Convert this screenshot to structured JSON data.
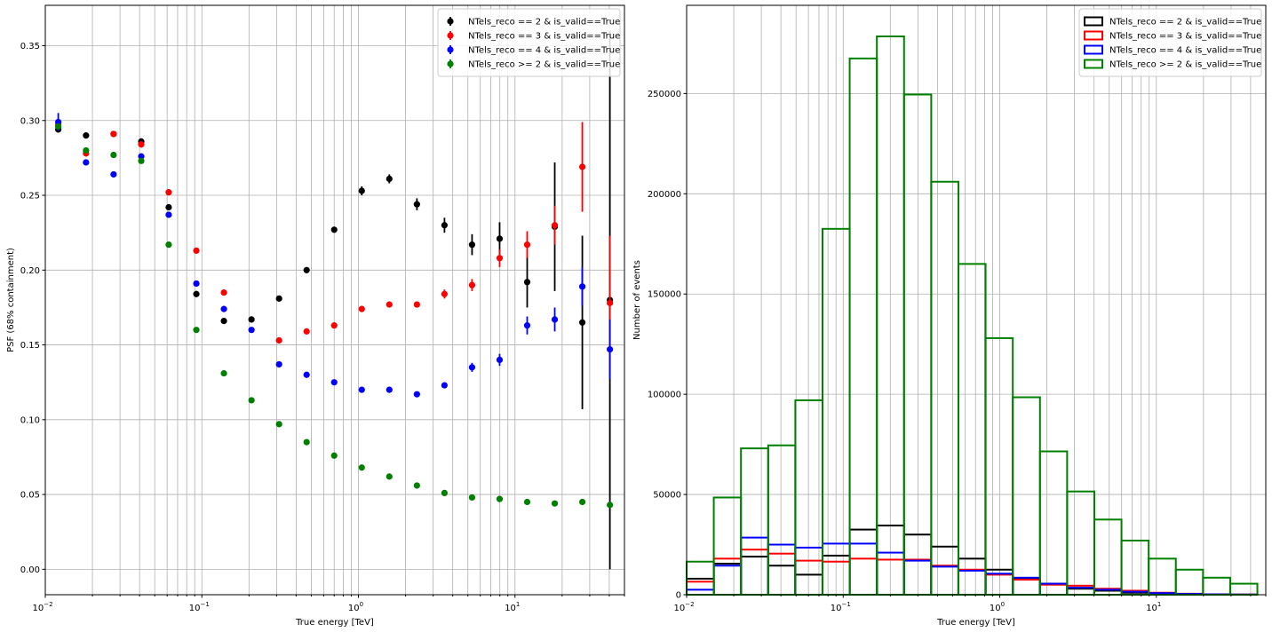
{
  "colors": {
    "black": "#000000",
    "red": "#ff0000",
    "blue": "#0000ff",
    "green": "#008000",
    "grid": "#b0b0b0"
  },
  "chart_data": [
    {
      "type": "scatter",
      "title": "",
      "xlabel": "True energy [TeV]",
      "ylabel": "PSF (68% containment)",
      "xscale": "log",
      "xlim": [
        0.01,
        50
      ],
      "ylim": [
        -0.017,
        0.377
      ],
      "x_ticks": [
        {
          "v": 0.01,
          "label": "10",
          "sup": "−2"
        },
        {
          "v": 0.1,
          "label": "10",
          "sup": "−1"
        },
        {
          "v": 1,
          "label": "10",
          "sup": "0"
        },
        {
          "v": 10,
          "label": "10",
          "sup": "1"
        }
      ],
      "y_ticks": [
        "0.00",
        "0.05",
        "0.10",
        "0.15",
        "0.20",
        "0.25",
        "0.30",
        "0.35"
      ],
      "grid": true,
      "legend_position": "top-right",
      "x": [
        0.0121,
        0.0182,
        0.0273,
        0.041,
        0.0614,
        0.0922,
        0.1383,
        0.2075,
        0.3112,
        0.4667,
        0.7001,
        1.05,
        1.575,
        2.363,
        3.544,
        5.316,
        7.974,
        11.96,
        17.94,
        26.91,
        40.37
      ],
      "series": [
        {
          "name": "NTels_reco == 2 & is_valid==True",
          "color": "#000000",
          "values": [
            0.294,
            0.29,
            0.291,
            0.286,
            0.242,
            0.184,
            0.166,
            0.167,
            0.181,
            0.2,
            0.227,
            0.253,
            0.261,
            0.244,
            0.23,
            0.217,
            0.221,
            0.192,
            0.229,
            0.165,
            0.18
          ],
          "errors": [
            0.002,
            0.002,
            0.002,
            0.002,
            0.002,
            0.002,
            0.002,
            0.002,
            0.002,
            0.002,
            0.002,
            0.003,
            0.003,
            0.004,
            0.005,
            0.007,
            0.011,
            0.017,
            0.043,
            0.058,
            0.18
          ]
        },
        {
          "name": "NTels_reco == 3 & is_valid==True",
          "color": "#ff0000",
          "values": [
            0.297,
            0.278,
            0.291,
            0.284,
            0.252,
            0.213,
            0.185,
            null,
            0.153,
            0.159,
            0.163,
            0.174,
            0.177,
            0.177,
            0.184,
            0.19,
            0.208,
            0.217,
            0.23,
            0.269,
            0.178
          ],
          "errors": [
            0.002,
            0.002,
            0.002,
            0.002,
            0.002,
            0.002,
            0.002,
            null,
            0.002,
            0.002,
            0.002,
            0.002,
            0.002,
            0.002,
            0.003,
            0.004,
            0.006,
            0.009,
            0.013,
            0.03,
            0.045
          ]
        },
        {
          "name": "NTels_reco == 4 & is_valid==True",
          "color": "#0000ff",
          "values": [
            0.299,
            0.272,
            0.264,
            0.276,
            0.237,
            0.191,
            0.174,
            0.16,
            0.137,
            0.13,
            0.125,
            0.12,
            0.12,
            0.117,
            0.123,
            0.135,
            0.14,
            0.163,
            0.167,
            0.189,
            0.147
          ],
          "errors": [
            0.006,
            0.002,
            0.002,
            0.002,
            0.002,
            0.002,
            0.002,
            0.001,
            0.001,
            0.001,
            0.001,
            0.001,
            0.001,
            0.001,
            0.002,
            0.003,
            0.004,
            0.006,
            0.008,
            0.013,
            0.02
          ]
        },
        {
          "name": "NTels_reco >= 2 & is_valid==True",
          "color": "#008000",
          "values": [
            0.296,
            0.28,
            0.277,
            0.273,
            0.217,
            0.16,
            0.131,
            0.113,
            0.097,
            0.085,
            0.076,
            0.068,
            0.062,
            0.056,
            0.051,
            0.048,
            0.047,
            0.045,
            0.044,
            0.045,
            0.043
          ],
          "errors": [
            0.001,
            0.001,
            0.001,
            0.001,
            0.001,
            0.001,
            0.001,
            0.001,
            0.001,
            0.001,
            0.001,
            0.001,
            0.001,
            0.001,
            0.001,
            0.001,
            0.001,
            0.001,
            0.001,
            0.001,
            0.001
          ]
        }
      ]
    },
    {
      "type": "histogram",
      "title": "",
      "xlabel": "True energy [TeV]",
      "ylabel": "Number of events",
      "xscale": "log",
      "xlim": [
        0.01,
        50
      ],
      "ylim": [
        0,
        294000
      ],
      "x_ticks": [
        {
          "v": 0.01,
          "label": "10",
          "sup": "−2"
        },
        {
          "v": 0.1,
          "label": "10",
          "sup": "−1"
        },
        {
          "v": 1,
          "label": "10",
          "sup": "0"
        },
        {
          "v": 10,
          "label": "10",
          "sup": "1"
        }
      ],
      "y_ticks": [
        "0",
        "50000",
        "100000",
        "150000",
        "200000",
        "250000"
      ],
      "grid": true,
      "legend_position": "top-right",
      "bin_edges": [
        0.01,
        0.01491,
        0.02224,
        0.03317,
        0.04946,
        0.07377,
        0.11,
        0.1641,
        0.2447,
        0.365,
        0.5443,
        0.8117,
        1.211,
        1.806,
        2.693,
        4.016,
        5.99,
        8.933,
        13.32,
        19.87,
        29.63,
        44.19
      ],
      "series": [
        {
          "name": "NTels_reco == 2 & is_valid==True",
          "color": "#000000",
          "values": [
            8000,
            15500,
            19000,
            14500,
            10000,
            19500,
            32500,
            34500,
            30000,
            24000,
            18000,
            12500,
            8000,
            5500,
            3000,
            2000,
            1000,
            500,
            200,
            100,
            50
          ]
        },
        {
          "name": "NTels_reco == 3 & is_valid==True",
          "color": "#ff0000",
          "values": [
            6500,
            18000,
            22500,
            20500,
            17000,
            16500,
            18000,
            17500,
            17500,
            14500,
            12500,
            10000,
            7500,
            5000,
            4500,
            3000,
            2000,
            1000,
            500,
            200,
            100
          ]
        },
        {
          "name": "NTels_reco == 4 & is_valid==True",
          "color": "#0000ff",
          "values": [
            2500,
            14500,
            28500,
            25000,
            23500,
            25500,
            25500,
            21000,
            17000,
            14000,
            12000,
            10500,
            8500,
            5500,
            3500,
            2500,
            1500,
            800,
            400,
            200,
            100
          ]
        },
        {
          "name": "NTels_reco >= 2 & is_valid==True",
          "color": "#008000",
          "values": [
            16500,
            48500,
            73000,
            74500,
            97000,
            182500,
            267500,
            278500,
            249500,
            206000,
            165000,
            128000,
            98500,
            71500,
            51500,
            37500,
            27000,
            18000,
            12500,
            8500,
            5500
          ]
        }
      ]
    }
  ]
}
